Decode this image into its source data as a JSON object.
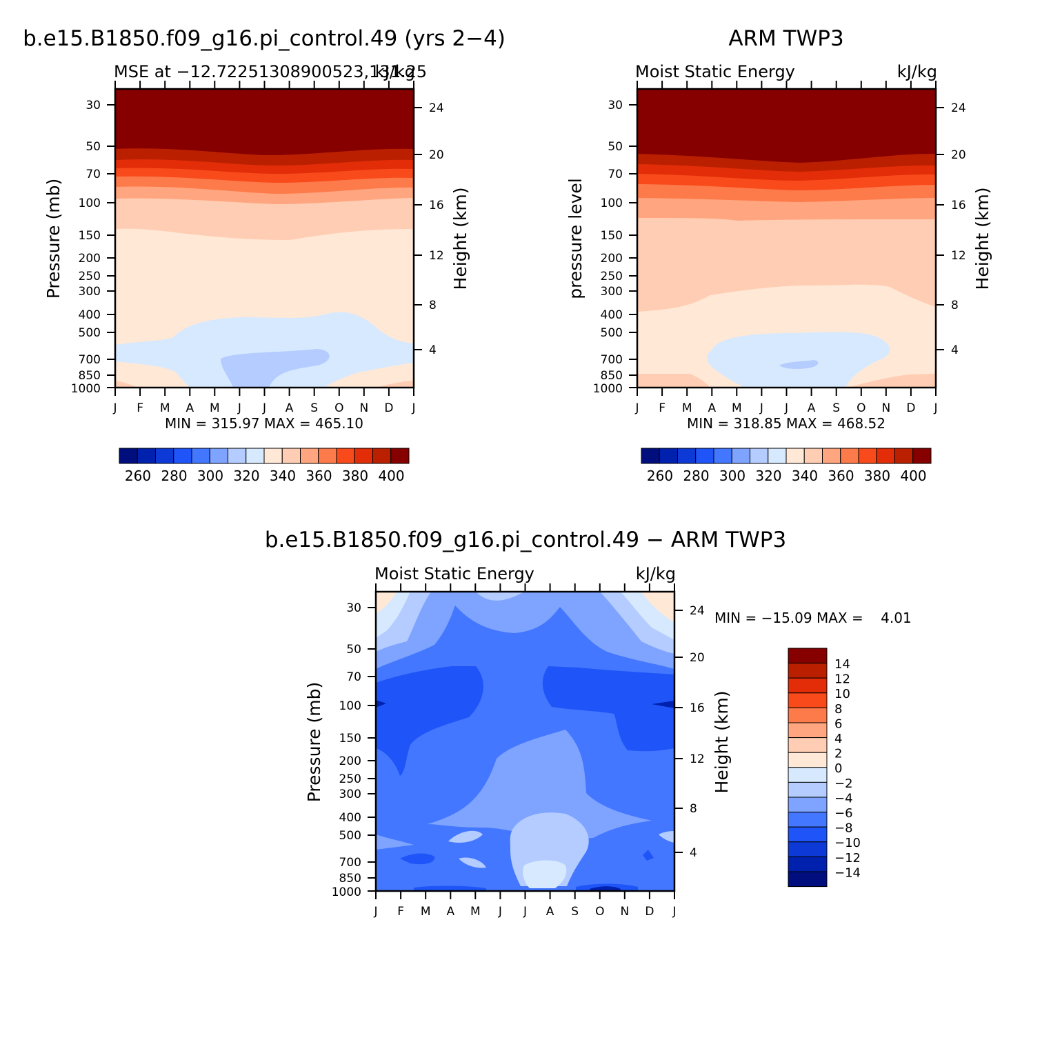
{
  "chart_data": [
    {
      "type": "heatmap",
      "title": "b.e15.B1850.f09_g16.pi_control.49 (yrs 2−4)",
      "left_label": "MSE at −12.72251308900523,131.25",
      "right_label": "kJ/kg",
      "ylabel": "Pressure (mb)",
      "ylabel_right": "Height (km)",
      "x_ticks": [
        "J",
        "F",
        "M",
        "A",
        "M",
        "J",
        "J",
        "A",
        "S",
        "O",
        "N",
        "D",
        "J"
      ],
      "y_ticks": [
        "30",
        "50",
        "70",
        "100",
        "150",
        "200",
        "250",
        "300",
        "400",
        "500",
        "700",
        "850",
        "1000"
      ],
      "y2_ticks": [
        "24",
        "20",
        "16",
        "12",
        "8",
        "4"
      ],
      "stats": "MIN = 315.97 MAX = 465.10",
      "colorbar": {
        "labels": [
          "260",
          "280",
          "300",
          "320",
          "340",
          "360",
          "380",
          "400"
        ],
        "colors": [
          "#000e7e",
          "#0021ad",
          "#0d3ad6",
          "#1f55f8",
          "#4477ff",
          "#7fa4ff",
          "#b4ccff",
          "#d6e9ff",
          "#ffe8d6",
          "#ffcdb3",
          "#ffa57f",
          "#fd7a4a",
          "#f84a1a",
          "#e22d08",
          "#ba2000",
          "#860000"
        ]
      },
      "fill_levels": [
        "#860000",
        "#ba2000",
        "#e22d08",
        "#f84a1a",
        "#fd7a4a",
        "#ffa57f",
        "#ffcdb3",
        "#ffe8d6",
        "#d6e9ff",
        "#b4ccff"
      ]
    },
    {
      "type": "heatmap",
      "title": "ARM TWP3",
      "left_label": "Moist Static Energy",
      "right_label": "kJ/kg",
      "ylabel": "pressure level",
      "ylabel_right": "Height (km)",
      "x_ticks": [
        "J",
        "F",
        "M",
        "A",
        "M",
        "J",
        "J",
        "A",
        "S",
        "O",
        "N",
        "D",
        "J"
      ],
      "y_ticks": [
        "30",
        "50",
        "70",
        "100",
        "150",
        "200",
        "250",
        "300",
        "400",
        "500",
        "700",
        "850",
        "1000"
      ],
      "y2_ticks": [
        "24",
        "20",
        "16",
        "12",
        "8",
        "4"
      ],
      "stats": "MIN = 318.85 MAX = 468.52",
      "colorbar": {
        "labels": [
          "260",
          "280",
          "300",
          "320",
          "340",
          "360",
          "380",
          "400"
        ],
        "colors": [
          "#000e7e",
          "#0021ad",
          "#0d3ad6",
          "#1f55f8",
          "#4477ff",
          "#7fa4ff",
          "#b4ccff",
          "#d6e9ff",
          "#ffe8d6",
          "#ffcdb3",
          "#ffa57f",
          "#fd7a4a",
          "#f84a1a",
          "#e22d08",
          "#ba2000",
          "#860000"
        ]
      }
    },
    {
      "type": "heatmap",
      "title": "b.e15.B1850.f09_g16.pi_control.49 − ARM TWP3",
      "left_label": "Moist Static Energy",
      "right_label": "kJ/kg",
      "ylabel": "Pressure (mb)",
      "ylabel_right": "Height (km)",
      "x_ticks": [
        "J",
        "F",
        "M",
        "A",
        "M",
        "J",
        "J",
        "A",
        "S",
        "O",
        "N",
        "D",
        "J"
      ],
      "y_ticks": [
        "30",
        "50",
        "70",
        "100",
        "150",
        "200",
        "250",
        "300",
        "400",
        "500",
        "700",
        "850",
        "1000"
      ],
      "y2_ticks": [
        "24",
        "20",
        "16",
        "12",
        "8",
        "4"
      ],
      "stats": "MIN = −15.09 MAX =    4.01",
      "colorbar": {
        "labels": [
          "14",
          "12",
          "10",
          "8",
          "6",
          "4",
          "2",
          "0",
          "−2",
          "−4",
          "−6",
          "−8",
          "−10",
          "−12",
          "−14"
        ],
        "colors": [
          "#860000",
          "#ba2000",
          "#e22d08",
          "#f84a1a",
          "#fd7a4a",
          "#ffa57f",
          "#ffcdb3",
          "#ffe8d6",
          "#d6e9ff",
          "#b4ccff",
          "#7fa4ff",
          "#4477ff",
          "#1f55f8",
          "#0d3ad6",
          "#0021ad",
          "#000e7e"
        ]
      }
    }
  ]
}
